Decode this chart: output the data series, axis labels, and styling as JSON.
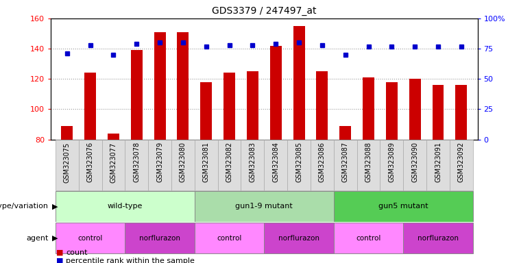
{
  "title": "GDS3379 / 247497_at",
  "samples": [
    "GSM323075",
    "GSM323076",
    "GSM323077",
    "GSM323078",
    "GSM323079",
    "GSM323080",
    "GSM323081",
    "GSM323082",
    "GSM323083",
    "GSM323084",
    "GSM323085",
    "GSM323086",
    "GSM323087",
    "GSM323088",
    "GSM323089",
    "GSM323090",
    "GSM323091",
    "GSM323092"
  ],
  "counts": [
    89,
    124,
    84,
    139,
    151,
    151,
    118,
    124,
    125,
    142,
    155,
    125,
    89,
    121,
    118,
    120,
    116,
    116
  ],
  "percentile_ranks": [
    71,
    78,
    70,
    79,
    80,
    80,
    77,
    78,
    78,
    79,
    80,
    78,
    70,
    77,
    77,
    77,
    77,
    77
  ],
  "bar_color": "#cc0000",
  "dot_color": "#0000cc",
  "ylim_left": [
    80,
    160
  ],
  "ylim_right": [
    0,
    100
  ],
  "yticks_left": [
    80,
    100,
    120,
    140,
    160
  ],
  "yticks_right": [
    0,
    25,
    50,
    75,
    100
  ],
  "ytick_labels_right": [
    "0",
    "25",
    "50",
    "75",
    "100%"
  ],
  "geno_groups": [
    {
      "label": "wild-type",
      "start": 0,
      "end": 5,
      "color": "#ccffcc"
    },
    {
      "label": "gun1-9 mutant",
      "start": 6,
      "end": 11,
      "color": "#aaddaa"
    },
    {
      "label": "gun5 mutant",
      "start": 12,
      "end": 17,
      "color": "#55cc55"
    }
  ],
  "agent_groups": [
    {
      "label": "control",
      "start": 0,
      "end": 2,
      "color": "#ff88ff"
    },
    {
      "label": "norflurazon",
      "start": 3,
      "end": 5,
      "color": "#cc44cc"
    },
    {
      "label": "control",
      "start": 6,
      "end": 8,
      "color": "#ff88ff"
    },
    {
      "label": "norflurazon",
      "start": 9,
      "end": 11,
      "color": "#cc44cc"
    },
    {
      "label": "control",
      "start": 12,
      "end": 14,
      "color": "#ff88ff"
    },
    {
      "label": "norflurazon",
      "start": 15,
      "end": 17,
      "color": "#cc44cc"
    }
  ],
  "legend_count_color": "#cc0000",
  "legend_dot_color": "#0000cc",
  "genotype_label": "genotype/variation",
  "agent_label": "agent",
  "background_color": "#ffffff",
  "grid_color": "#999999",
  "xticklabel_bg": "#dddddd"
}
